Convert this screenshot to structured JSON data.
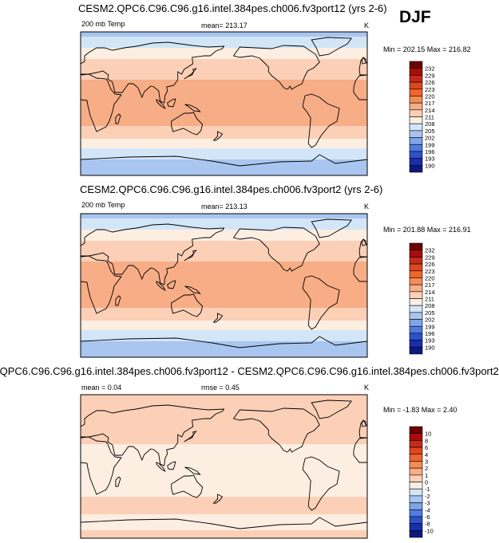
{
  "season": "DJF",
  "panels": [
    {
      "title": "CESM2.QPC6.C96.C96.g16.intel.384pes.ch006.fv3port12 (yrs 2-6)",
      "left_label": "200 mb Temp",
      "center_label": "mean= 213.17",
      "right_label": "K",
      "minmax": "Min = 202.15 Max = 216.82"
    },
    {
      "title": "CESM2.QPC6.C96.C96.g16.intel.384pes.ch006.fv3port2 (yrs 2-6)",
      "left_label": "200 mb Temp",
      "center_label": "mean= 213.13",
      "right_label": "K",
      "minmax": "Min = 201.88 Max = 216.91"
    },
    {
      "title": ".QPC6.C96.C96.g16.intel.384pes.ch006.fv3port12 - CESM2.QPC6.C96.C96.g16.intel.384pes.ch006.fv3port2",
      "left_label": "mean =  0.04",
      "center_label": "rmse =  0.45",
      "right_label": "K",
      "minmax": "Min =  -1.83 Max =   2.40"
    }
  ],
  "chart_data": [
    {
      "type": "heatmap",
      "map": "global lat-lon contour map with coastlines",
      "variable": "200 mb Temp",
      "units": "K",
      "mean": 213.17,
      "min": 202.15,
      "max": 216.82,
      "colorbar": {
        "levels": [
          232,
          229,
          226,
          223,
          220,
          217,
          214,
          211,
          208,
          205,
          202,
          199,
          196,
          193,
          190
        ],
        "colors": [
          "#6e0000",
          "#a80c0c",
          "#c62a1a",
          "#e0471e",
          "#f0652e",
          "#f58c57",
          "#f7ad86",
          "#fbd0b6",
          "#fdeee2",
          "#d3e6f8",
          "#a9c6f0",
          "#7fa4e8",
          "#4f7de0",
          "#2e52cc",
          "#1a2ea8",
          "#0b1a80"
        ]
      },
      "zonal_bands": [
        {
          "lat": 90,
          "value": 203
        },
        {
          "lat": 80,
          "value": 206
        },
        {
          "lat": 70,
          "value": 208
        },
        {
          "lat": 55,
          "value": 211
        },
        {
          "lat": 40,
          "value": 213
        },
        {
          "lat": 25,
          "value": 214.5
        },
        {
          "lat": 0,
          "value": 215
        },
        {
          "lat": -25,
          "value": 214.5
        },
        {
          "lat": -40,
          "value": 212
        },
        {
          "lat": -55,
          "value": 208
        },
        {
          "lat": -70,
          "value": 205
        },
        {
          "lat": -90,
          "value": 203
        }
      ]
    },
    {
      "type": "heatmap",
      "map": "global lat-lon contour map with coastlines",
      "variable": "200 mb Temp",
      "units": "K",
      "mean": 213.13,
      "min": 201.88,
      "max": 216.91,
      "colorbar": {
        "levels": [
          232,
          229,
          226,
          223,
          220,
          217,
          214,
          211,
          208,
          205,
          202,
          199,
          196,
          193,
          190
        ],
        "colors": [
          "#6e0000",
          "#a80c0c",
          "#c62a1a",
          "#e0471e",
          "#f0652e",
          "#f58c57",
          "#f7ad86",
          "#fbd0b6",
          "#fdeee2",
          "#d3e6f8",
          "#a9c6f0",
          "#7fa4e8",
          "#4f7de0",
          "#2e52cc",
          "#1a2ea8",
          "#0b1a80"
        ]
      },
      "zonal_bands": [
        {
          "lat": 90,
          "value": 203
        },
        {
          "lat": 80,
          "value": 206
        },
        {
          "lat": 70,
          "value": 208
        },
        {
          "lat": 55,
          "value": 211
        },
        {
          "lat": 40,
          "value": 213
        },
        {
          "lat": 25,
          "value": 214.5
        },
        {
          "lat": 0,
          "value": 215
        },
        {
          "lat": -25,
          "value": 214.5
        },
        {
          "lat": -40,
          "value": 212
        },
        {
          "lat": -55,
          "value": 208
        },
        {
          "lat": -70,
          "value": 205
        },
        {
          "lat": -90,
          "value": 202
        }
      ]
    },
    {
      "type": "heatmap",
      "map": "global lat-lon contour map with coastlines (difference)",
      "units": "K",
      "mean": 0.04,
      "rmse": 0.45,
      "min": -1.83,
      "max": 2.4,
      "colorbar": {
        "levels": [
          10,
          8,
          6,
          4,
          3,
          2,
          1,
          0,
          -1,
          -2,
          -3,
          -4,
          -6,
          -8,
          -10
        ],
        "colors": [
          "#6e0000",
          "#a80c0c",
          "#c62a1a",
          "#e0471e",
          "#f0652e",
          "#f58c57",
          "#f7ad86",
          "#fbd0b6",
          "#fdeee2",
          "#d3e6f8",
          "#a9c6f0",
          "#7fa4e8",
          "#4f7de0",
          "#2e52cc",
          "#1a2ea8",
          "#0b1a80"
        ]
      },
      "zonal_bands": [
        {
          "lat": 90,
          "value": 0.5
        },
        {
          "lat": 40,
          "value": 0.5
        },
        {
          "lat": 20,
          "value": -0.3
        },
        {
          "lat": 0,
          "value": -0.5
        },
        {
          "lat": -30,
          "value": -0.3
        },
        {
          "lat": -50,
          "value": 0.5
        },
        {
          "lat": -70,
          "value": -0.5
        },
        {
          "lat": -90,
          "value": 0.5
        }
      ]
    }
  ]
}
